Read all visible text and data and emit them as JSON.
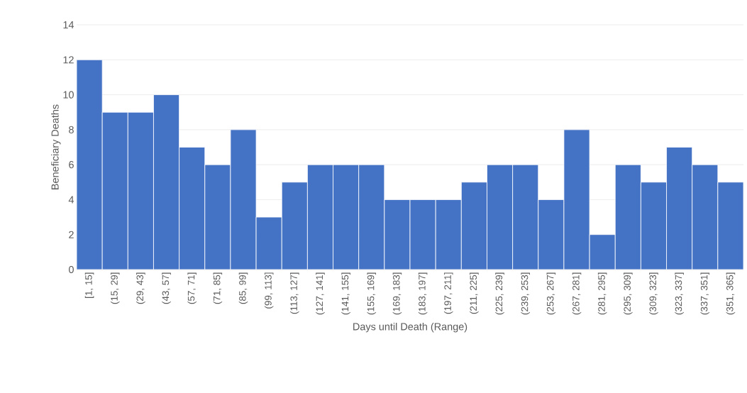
{
  "chart_data": {
    "type": "bar",
    "xlabel": "Days until Death (Range)",
    "ylabel": "Beneficiary Deaths",
    "categories": [
      "[1, 15]",
      "(15, 29]",
      "(29, 43]",
      "(43, 57]",
      "(57, 71]",
      "(71, 85]",
      "(85, 99]",
      "(99, 113]",
      "(113, 127]",
      "(127, 141]",
      "(141, 155]",
      "(155, 169]",
      "(169, 183]",
      "(183, 197]",
      "(197, 211]",
      "(211, 225]",
      "(225, 239]",
      "(239, 253]",
      "(253, 267]",
      "(267, 281]",
      "(281, 295]",
      "(295, 309]",
      "(309, 323]",
      "(323, 337]",
      "(337, 351]",
      "(351, 365]"
    ],
    "values": [
      12,
      9,
      9,
      10,
      7,
      6,
      8,
      3,
      5,
      6,
      6,
      6,
      4,
      4,
      4,
      5,
      6,
      6,
      4,
      8,
      2,
      6,
      5,
      7,
      6,
      5
    ],
    "color": "#4472c4",
    "ylim": [
      0,
      14
    ],
    "yticks": [
      0,
      2,
      4,
      6,
      8,
      10,
      12,
      14
    ],
    "grid": "y"
  }
}
